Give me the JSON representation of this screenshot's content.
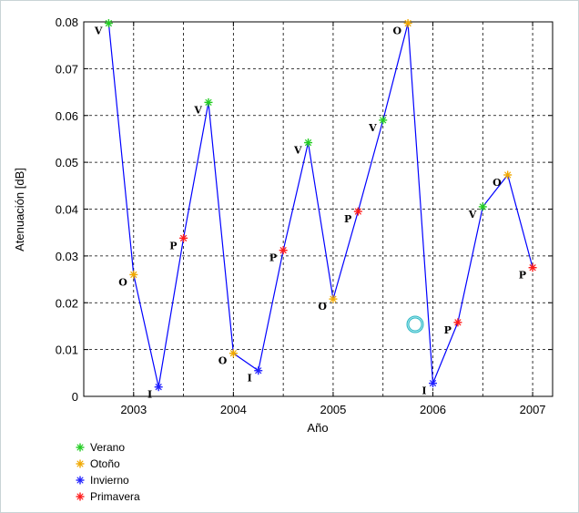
{
  "chart_data": {
    "type": "line",
    "title": "",
    "xlabel": "Año",
    "ylabel": "Atenuación [dB]",
    "xlim": [
      2002.5,
      2007.2
    ],
    "ylim": [
      0,
      0.08
    ],
    "xticks": [
      2003,
      2004,
      2005,
      2006,
      2007
    ],
    "xtick_labels": [
      "2003",
      "2004",
      "2005",
      "2006",
      "2007"
    ],
    "yticks": [
      0,
      0.01,
      0.02,
      0.03,
      0.04,
      0.05,
      0.06,
      0.07,
      0.08
    ],
    "ytick_labels": [
      "0",
      "0.01",
      "0.02",
      "0.03",
      "0.04",
      "0.05",
      "0.06",
      "0.07",
      "0.08"
    ],
    "grid": true,
    "line_color": "#0000ff",
    "series": [
      {
        "x": [
          2002.75,
          2003.0,
          2003.25,
          2003.5,
          2003.75,
          2004.0,
          2004.25,
          2004.5,
          2004.75,
          2005.0,
          2005.25,
          2005.5,
          2005.75,
          2006.0,
          2006.25,
          2006.5,
          2006.75,
          2007.0
        ],
        "values": [
          0.0797,
          0.026,
          0.002,
          0.0338,
          0.0628,
          0.0092,
          0.0055,
          0.0312,
          0.0542,
          0.0208,
          0.0395,
          0.059,
          0.0797,
          0.0028,
          0.0158,
          0.0405,
          0.0473,
          0.0275
        ],
        "labels": [
          "V",
          "O",
          "I",
          "P",
          "V",
          "O",
          "I",
          "P",
          "V",
          "O",
          "P",
          "V",
          "O",
          "I",
          "P",
          "V",
          "O",
          "P"
        ],
        "seasons": [
          "verano",
          "otono",
          "invierno",
          "primavera",
          "verano",
          "otono",
          "invierno",
          "primavera",
          "verano",
          "otono",
          "primavera",
          "verano",
          "otono",
          "invierno",
          "primavera",
          "verano",
          "otono",
          "primavera"
        ]
      }
    ],
    "season_colors": {
      "verano": "#22cc22",
      "otono": "#f0a800",
      "invierno": "#2222ff",
      "primavera": "#ff1a1a"
    },
    "legend": {
      "placement": "bottom-left",
      "entries": [
        {
          "name": "Verano",
          "season": "verano"
        },
        {
          "name": "Otoño",
          "season": "otono"
        },
        {
          "name": "Invierno",
          "season": "invierno"
        },
        {
          "name": "Primavera",
          "season": "primavera"
        }
      ]
    }
  }
}
